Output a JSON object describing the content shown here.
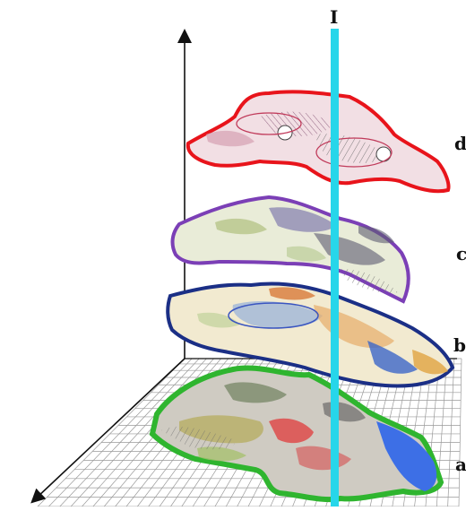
{
  "figure": {
    "axis_label": "I",
    "layers": [
      {
        "id": "d",
        "label": "d",
        "outline": "#e8141b"
      },
      {
        "id": "c",
        "label": "c",
        "outline": "#7b3fb6"
      },
      {
        "id": "b",
        "label": "b",
        "outline": "#1b2f86"
      },
      {
        "id": "a",
        "label": "a",
        "outline": "#2fb52f"
      }
    ]
  },
  "colors": {
    "axis_pole": "#27d6ea",
    "grid": "#9a9a9a",
    "axes": "#111111"
  }
}
